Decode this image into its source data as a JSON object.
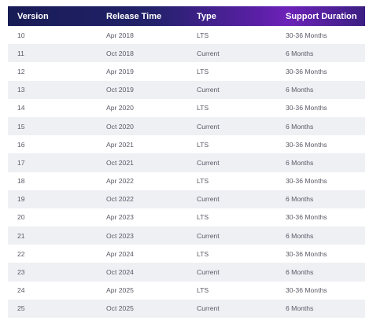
{
  "table": {
    "headers": [
      "Version",
      "Release Time",
      "Type",
      "Support Duration"
    ],
    "rows": [
      [
        "10",
        "Apr 2018",
        "LTS",
        "30-36 Months"
      ],
      [
        "11",
        "Oct 2018",
        "Current",
        "6 Months"
      ],
      [
        "12",
        "Apr 2019",
        "LTS",
        "30-36 Months"
      ],
      [
        "13",
        "Oct 2019",
        "Current",
        "6 Months"
      ],
      [
        "14",
        "Apr 2020",
        "LTS",
        "30-36 Months"
      ],
      [
        "15",
        "Oct 2020",
        "Current",
        "6 Months"
      ],
      [
        "16",
        "Apr 2021",
        "LTS",
        "30-36 Months"
      ],
      [
        "17",
        "Oct 2021",
        "Current",
        "6 Months"
      ],
      [
        "18",
        "Apr 2022",
        "LTS",
        "30-36 Months"
      ],
      [
        "19",
        "Oct 2022",
        "Current",
        "6 Months"
      ],
      [
        "20",
        "Apr 2023",
        "LTS",
        "30-36 Months"
      ],
      [
        "21",
        "Oct 2023",
        "Current",
        "6 Months"
      ],
      [
        "22",
        "Apr 2024",
        "LTS",
        "30-36 Months"
      ],
      [
        "23",
        "Oct 2024",
        "Current",
        "6 Months"
      ],
      [
        "24",
        "Apr 2025",
        "LTS",
        "30-36 Months"
      ],
      [
        "25",
        "Oct 2025",
        "Current",
        "6 Months"
      ]
    ]
  }
}
